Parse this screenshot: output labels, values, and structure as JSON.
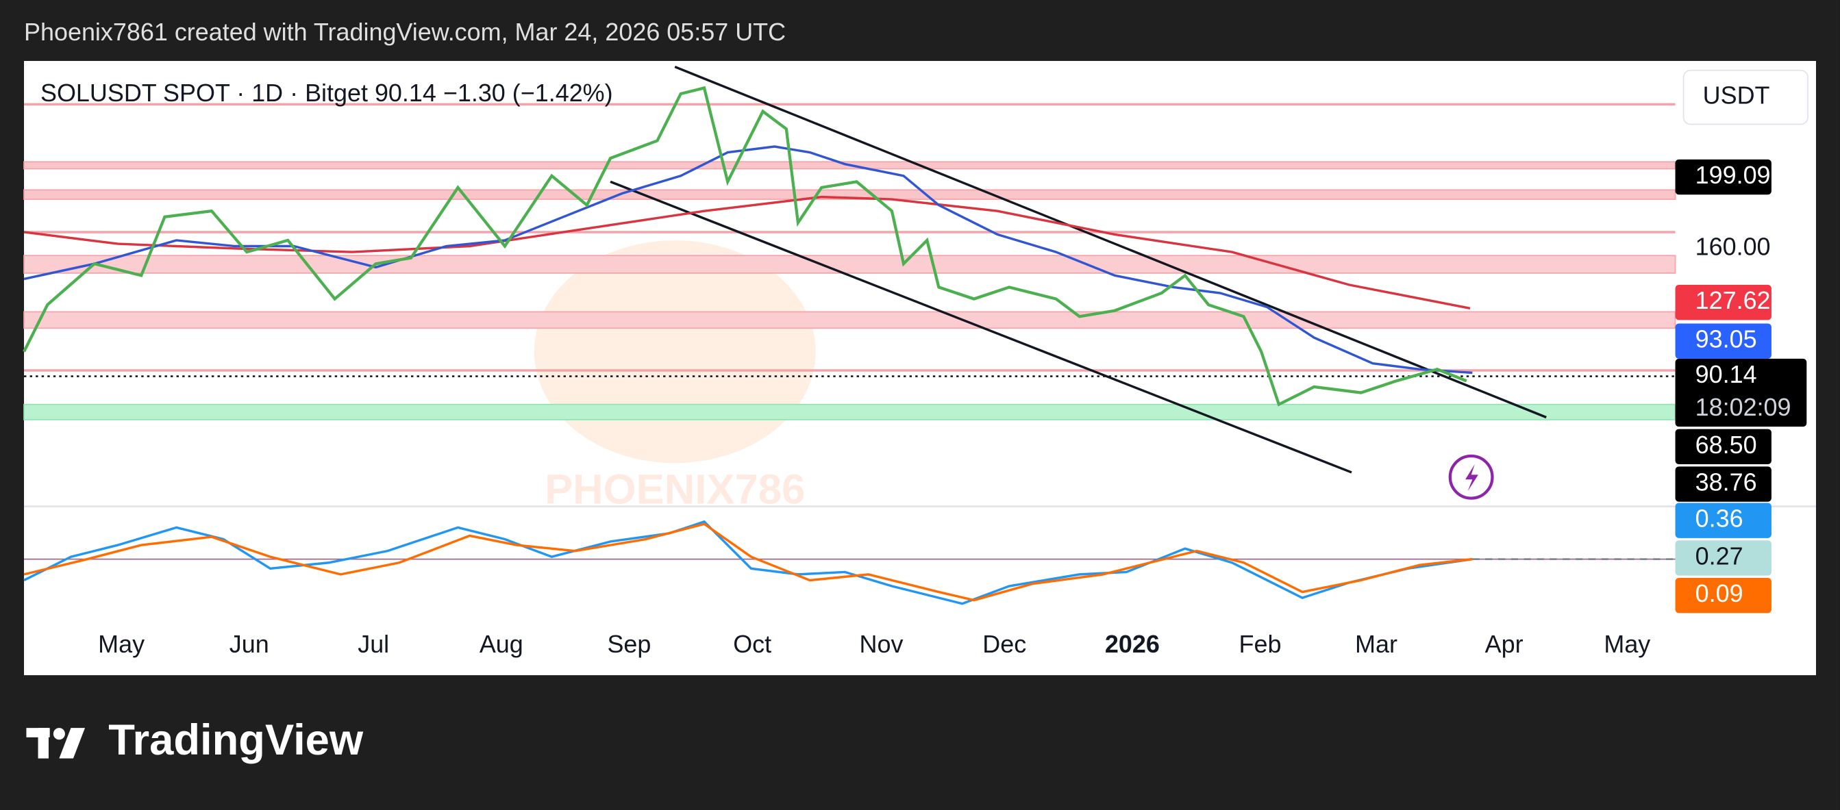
{
  "header": {
    "attribution": "Phoenix7861 created with TradingView.com, Mar 24, 2026 05:57 UTC"
  },
  "chart": {
    "symbol_line": "SOLUSDT SPOT · 1D · Bitget  90.14  −1.30 (−1.42%)",
    "currency": "USDT",
    "watermark": "PHOENIX786",
    "price_labels": [
      "199.09",
      "160.00",
      "127.62",
      "93.05",
      "90.14",
      "18:02:09",
      "68.50",
      "38.76",
      "0.36",
      "0.27",
      "0.09"
    ],
    "time_labels": [
      "May",
      "Jun",
      "Jul",
      "Aug",
      "Sep",
      "Oct",
      "Nov",
      "Dec",
      "2026",
      "Feb",
      "Mar",
      "Apr",
      "May"
    ]
  },
  "footer": {
    "brand": "TradingView"
  }
}
